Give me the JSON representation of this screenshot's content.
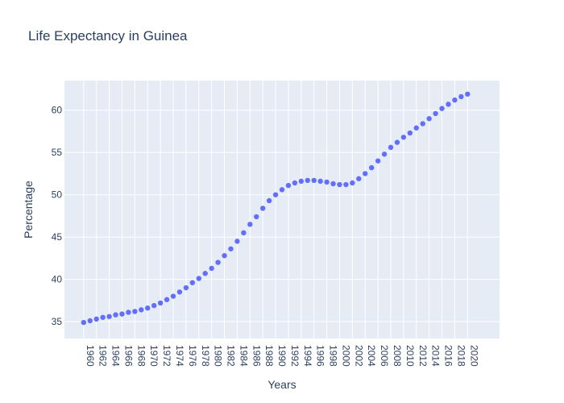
{
  "chart_data": {
    "type": "scatter",
    "title": "Life Expectancy in Guinea",
    "xlabel": "Years",
    "ylabel": "Percentage",
    "xlim": [
      1957,
      2025
    ],
    "ylim": [
      33,
      63.5
    ],
    "grid": true,
    "x_tick_labels": [
      "1960",
      "1962",
      "1964",
      "1966",
      "1968",
      "1970",
      "1972",
      "1974",
      "1976",
      "1978",
      "1980",
      "1982",
      "1984",
      "1986",
      "1988",
      "1990",
      "1992",
      "1994",
      "1996",
      "1998",
      "2000",
      "2002",
      "2004",
      "2006",
      "2008",
      "2010",
      "2012",
      "2014",
      "2016",
      "2018",
      "2020"
    ],
    "y_tick_labels": [
      "35",
      "40",
      "45",
      "50",
      "55",
      "60"
    ],
    "colors": {
      "marker": "#636efa",
      "plot_bg": "#e5ecf6",
      "grid": "#ffffff",
      "text": "#2a3f5f"
    },
    "series": [
      {
        "x": [
          1960,
          1961,
          1962,
          1963,
          1964,
          1965,
          1966,
          1967,
          1968,
          1969,
          1970,
          1971,
          1972,
          1973,
          1974,
          1975,
          1976,
          1977,
          1978,
          1979,
          1980,
          1981,
          1982,
          1983,
          1984,
          1985,
          1986,
          1987,
          1988,
          1989,
          1990,
          1991,
          1992,
          1993,
          1994,
          1995,
          1996,
          1997,
          1998,
          1999,
          2000,
          2001,
          2002,
          2003,
          2004,
          2005,
          2006,
          2007,
          2008,
          2009,
          2010,
          2011,
          2012,
          2013,
          2014,
          2015,
          2016,
          2017,
          2018,
          2019,
          2020
        ],
        "y": [
          34.9,
          35.1,
          35.3,
          35.5,
          35.6,
          35.8,
          35.9,
          36.1,
          36.2,
          36.4,
          36.6,
          36.9,
          37.2,
          37.6,
          38.0,
          38.5,
          39.0,
          39.6,
          40.1,
          40.7,
          41.3,
          42.0,
          42.8,
          43.6,
          44.5,
          45.5,
          46.5,
          47.4,
          48.4,
          49.3,
          50.0,
          50.6,
          51.1,
          51.4,
          51.6,
          51.7,
          51.7,
          51.6,
          51.5,
          51.3,
          51.2,
          51.2,
          51.4,
          51.9,
          52.5,
          53.2,
          54.0,
          54.8,
          55.6,
          56.2,
          56.8,
          57.3,
          57.9,
          58.4,
          59.0,
          59.6,
          60.2,
          60.7,
          61.2,
          61.6,
          61.9
        ]
      }
    ]
  }
}
